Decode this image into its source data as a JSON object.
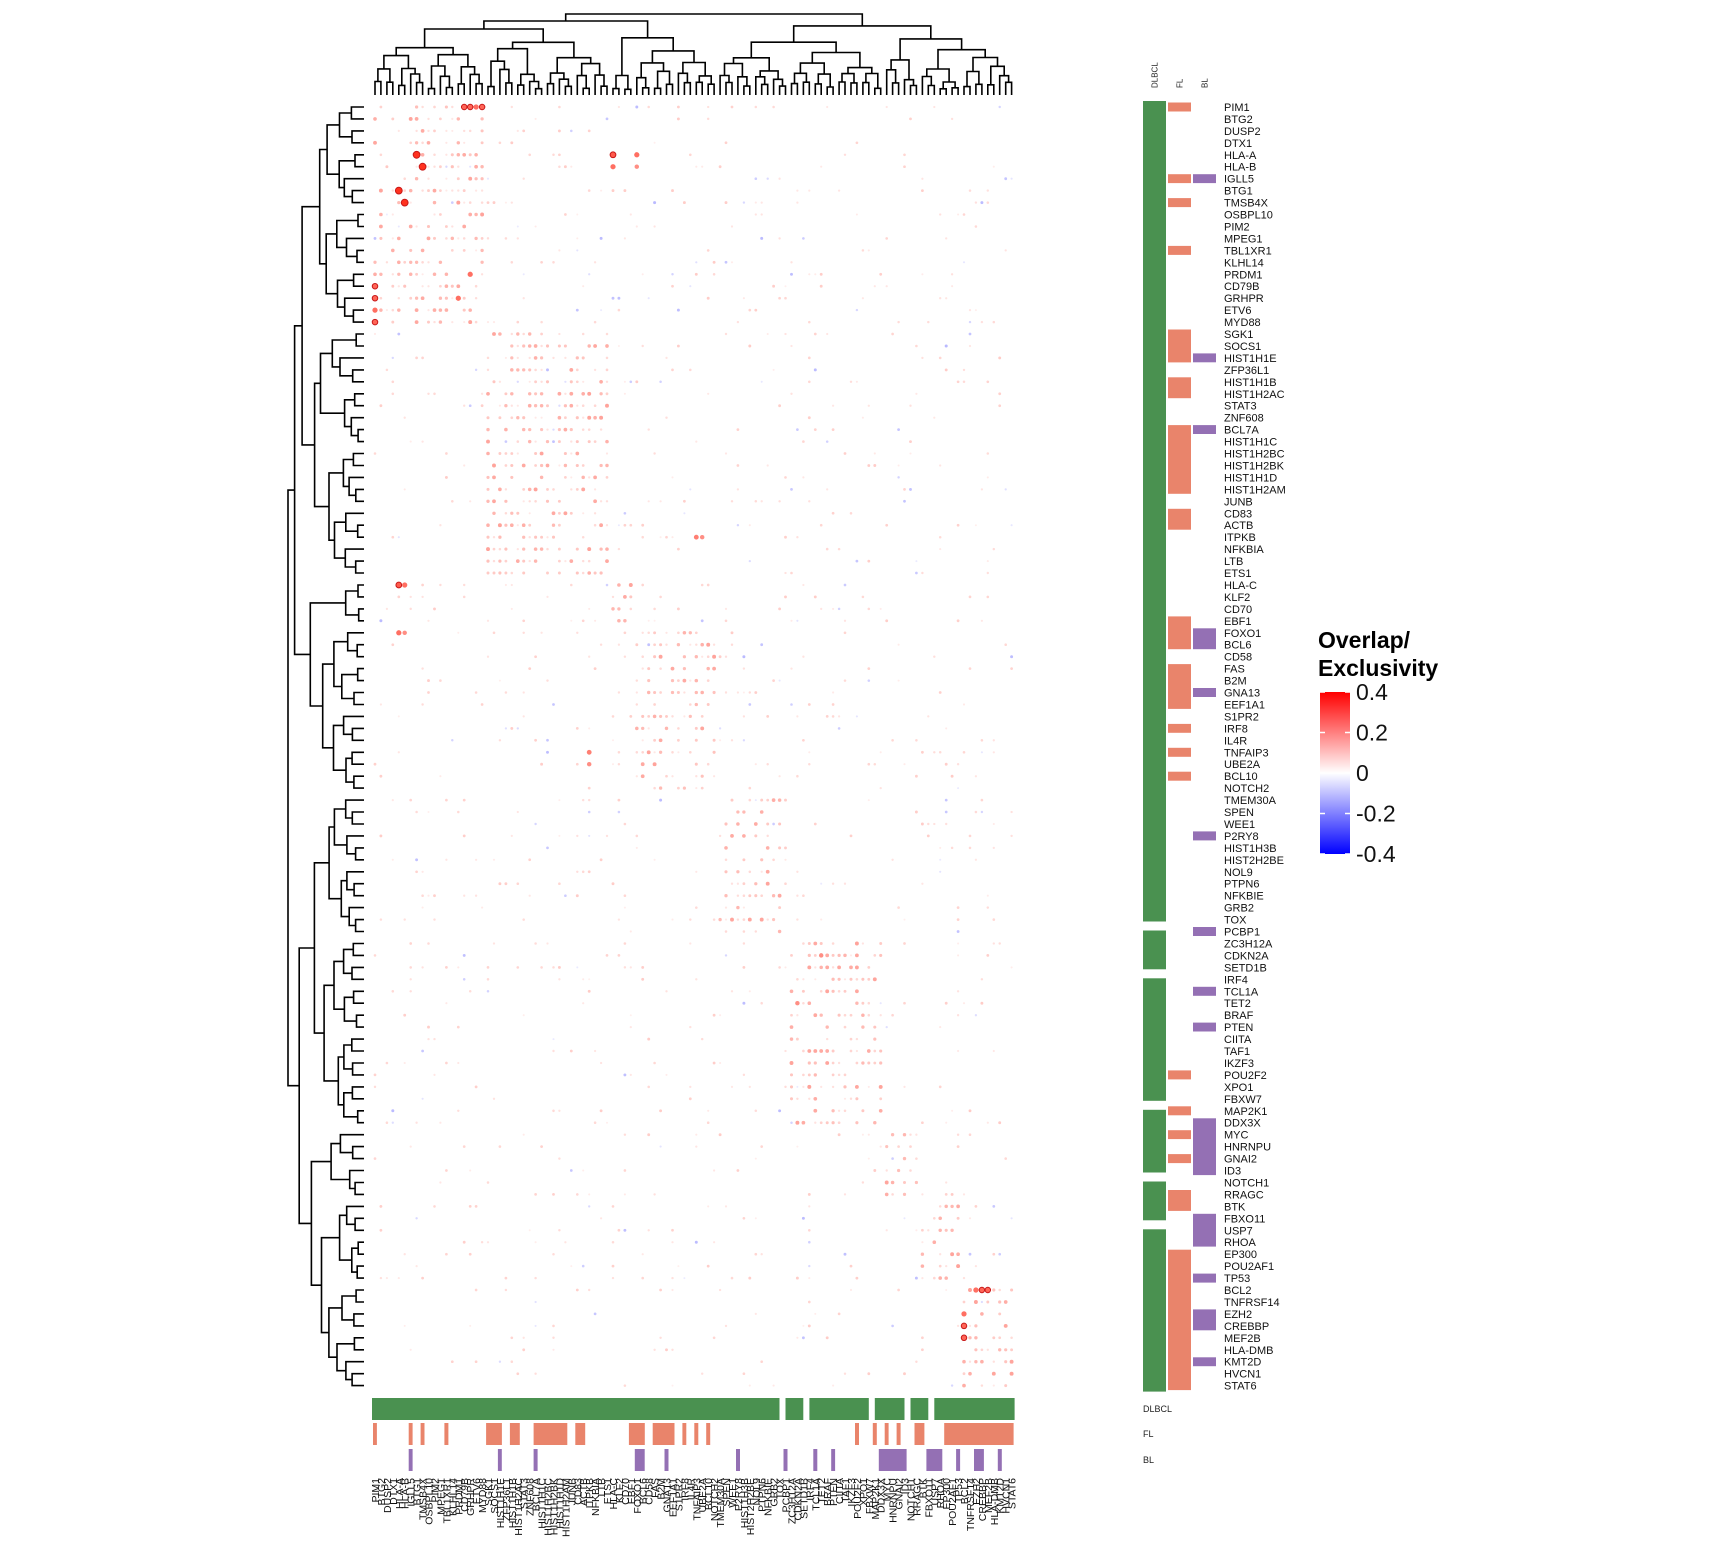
{
  "chart_data": {
    "type": "heatmap",
    "title": "",
    "genes": [
      "PIM1",
      "BTG2",
      "DUSP2",
      "DTX1",
      "HLA-A",
      "HLA-B",
      "IGLL5",
      "BTG1",
      "TMSB4X",
      "OSBPL10",
      "PIM2",
      "MPEG1",
      "TBL1XR1",
      "KLHL14",
      "PRDM1",
      "CD79B",
      "GRHPR",
      "ETV6",
      "MYD88",
      "SGK1",
      "SOCS1",
      "HIST1H1E",
      "ZFP36L1",
      "HIST1H1B",
      "HIST1H2AC",
      "STAT3",
      "ZNF608",
      "BCL7A",
      "HIST1H1C",
      "HIST1H2BC",
      "HIST1H2BK",
      "HIST1H1D",
      "HIST1H2AM",
      "JUNB",
      "CD83",
      "ACTB",
      "ITPKB",
      "NFKBIA",
      "LTB",
      "ETS1",
      "HLA-C",
      "KLF2",
      "CD70",
      "EBF1",
      "FOXO1",
      "BCL6",
      "CD58",
      "FAS",
      "B2M",
      "GNA13",
      "EEF1A1",
      "S1PR2",
      "IRF8",
      "IL4R",
      "TNFAIP3",
      "UBE2A",
      "BCL10",
      "NOTCH2",
      "TMEM30A",
      "SPEN",
      "WEE1",
      "P2RY8",
      "HIST1H3B",
      "HIST2H2BE",
      "NOL9",
      "PTPN6",
      "NFKBIE",
      "GRB2",
      "TOX",
      "PCBP1",
      "ZC3H12A",
      "CDKN2A",
      "SETD1B",
      "IRF4",
      "TCL1A",
      "TET2",
      "BRAF",
      "PTEN",
      "CIITA",
      "TAF1",
      "IKZF3",
      "POU2F2",
      "XPO1",
      "FBXW7",
      "MAP2K1",
      "DDX3X",
      "MYC",
      "HNRNPU",
      "GNAI2",
      "ID3",
      "NOTCH1",
      "RRAGC",
      "BTK",
      "FBXO11",
      "USP7",
      "RHOA",
      "EP300",
      "POU2AF1",
      "TP53",
      "BCL2",
      "TNFRSF14",
      "EZH2",
      "CREBBP",
      "MEF2B",
      "HLA-DMB",
      "KMT2D",
      "HVCN1",
      "STAT6"
    ],
    "annotations": [
      {
        "name": "DLBCL",
        "color": "#4a9150",
        "gaps": [
          [
            "TOX",
            "PCBP1"
          ],
          [
            "SETD1B",
            "IRF4"
          ],
          [
            "FBXW7",
            "MAP2K1"
          ],
          [
            "ID3",
            "NOTCH1"
          ],
          [
            "FBXO11",
            "USP7"
          ]
        ]
      },
      {
        "name": "FL",
        "color": "#e9846b",
        "members": [
          "PIM1",
          "IGLL5",
          "TMSB4X",
          "TBL1XR1",
          "SGK1",
          "SOCS1",
          "HIST1H1E",
          "HIST1H1B",
          "HIST1H2AC",
          "BCL7A",
          "HIST1H1C",
          "HIST1H2BC",
          "HIST1H2BK",
          "HIST1H1D",
          "HIST1H2AM",
          "CD83",
          "ACTB",
          "EBF1",
          "FOXO1",
          "BCL6",
          "FAS",
          "B2M",
          "GNA13",
          "EEF1A1",
          "IRF8",
          "TNFAIP3",
          "BCL10",
          "POU2F2",
          "MAP2K1",
          "MYC",
          "GNAI2",
          "RRAGC",
          "BTK",
          "EP300",
          "POU2AF1",
          "TP53",
          "BCL2",
          "TNFRSF14",
          "EZH2",
          "CREBBP",
          "MEF2B",
          "HLA-DMB",
          "KMT2D",
          "HVCN1",
          "STAT6"
        ]
      },
      {
        "name": "BL",
        "color": "#9470b4",
        "members": [
          "IGLL5",
          "HIST1H1E",
          "BCL7A",
          "FOXO1",
          "BCL6",
          "GNA13",
          "P2RY8",
          "PCBP1",
          "TCL1A",
          "PTEN",
          "DDX3X",
          "MYC",
          "HNRNPU",
          "GNAI2",
          "ID3",
          "FBXO11",
          "USP7",
          "RHOA",
          "TP53",
          "EZH2",
          "CREBBP",
          "KMT2D"
        ]
      }
    ],
    "hotspots": [
      {
        "row": "HLA-A",
        "col": "BTG1",
        "value": 0.4
      },
      {
        "row": "HLA-A",
        "col": "FOXO1",
        "value": 0.28
      },
      {
        "row": "HLA-B",
        "col": "TMSB4X",
        "value": 0.4
      },
      {
        "row": "HLA-B",
        "col": "FOXO1",
        "value": 0.22
      },
      {
        "row": "HLA-C",
        "col": "HLA-A",
        "value": 0.32
      },
      {
        "row": "HLA-C",
        "col": "HLA-B",
        "value": 0.28
      },
      {
        "row": "PIM1",
        "col": "GRHPR",
        "value": 0.3
      },
      {
        "row": "PIM1",
        "col": "ETV6",
        "value": 0.3
      },
      {
        "row": "PIM1",
        "col": "MYD88",
        "value": 0.3
      },
      {
        "row": "CD79B",
        "col": "PIM1",
        "value": 0.3
      },
      {
        "row": "MYD88",
        "col": "PIM1",
        "value": 0.3
      },
      {
        "row": "GRHPR",
        "col": "PRDM1",
        "value": 0.28
      },
      {
        "row": "ETV6",
        "col": "PIM1",
        "value": 0.28
      },
      {
        "row": "BCL2",
        "col": "EZH2",
        "value": 0.3
      },
      {
        "row": "BCL2",
        "col": "CREBBP",
        "value": 0.3
      },
      {
        "row": "BCL2",
        "col": "MEF2B",
        "value": 0.3
      },
      {
        "row": "CREBBP",
        "col": "BCL2",
        "value": 0.3
      },
      {
        "row": "EZH2",
        "col": "BCL2",
        "value": 0.28
      },
      {
        "row": "TNFAIP3",
        "col": "ITPKB",
        "value": 0.25
      },
      {
        "row": "UBE2A",
        "col": "ITPKB",
        "value": 0.22
      },
      {
        "row": "TET2",
        "col": "CDKN2A",
        "value": 0.22
      }
    ],
    "legend": {
      "title_line1": "Overlap/",
      "title_line2": "Exclusivity",
      "ticks": [
        "0.4",
        "0.2",
        "0",
        "-0.2",
        "-0.4"
      ],
      "tick_values": [
        0.4,
        0.2,
        0,
        -0.2,
        -0.4
      ],
      "range": [
        -0.4,
        0.4
      ],
      "colors": {
        "high": "#ff0000",
        "mid": "#ffffff",
        "low": "#0000ff"
      },
      "placement": "right"
    },
    "grid": false
  }
}
